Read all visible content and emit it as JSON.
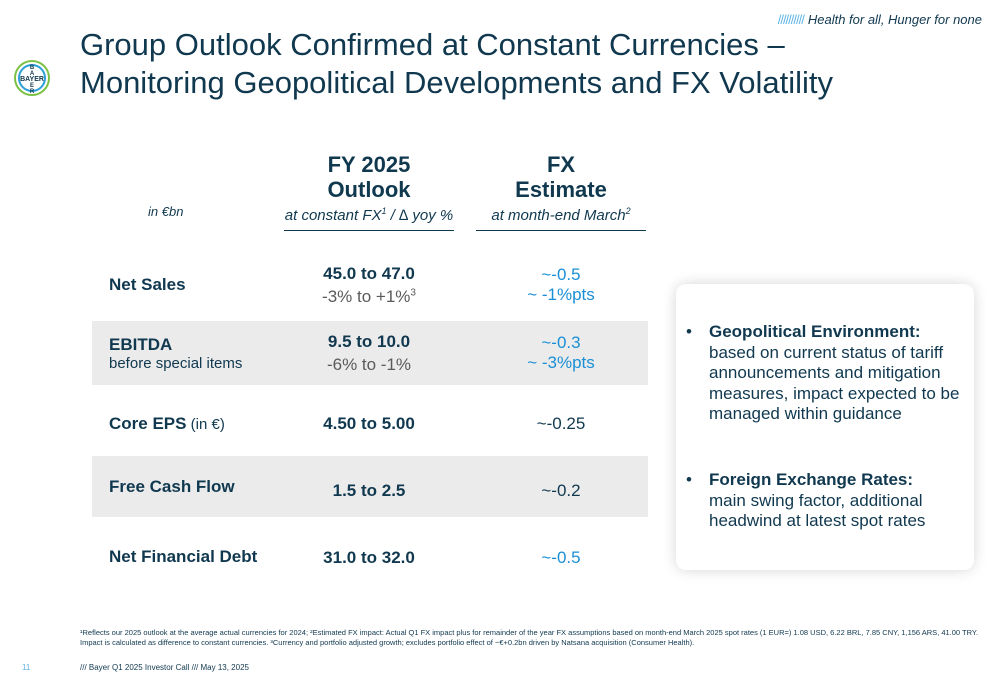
{
  "header": {
    "tagline_prefix": "//////////",
    "tagline": "Health for all, Hunger for none",
    "logo_text": "BAYER",
    "title_line1": "Group Outlook Confirmed at Constant Currencies –",
    "title_line2": "Monitoring Geopolitical Developments and FX Volatility"
  },
  "table": {
    "unit": "in €bn",
    "col1": {
      "title_line1": "FY 2025",
      "title_line2": "Outlook",
      "subtitle_prefix": "at constant FX",
      "subtitle_sup": "1",
      "subtitle_suffix": " / ∆ yoy %"
    },
    "col2": {
      "title_line1": "FX",
      "title_line2": "Estimate",
      "subtitle_prefix": "at month-end March",
      "subtitle_sup": "2"
    },
    "rows": [
      {
        "label": "Net Sales",
        "outlook": "45.0 to 47.0",
        "yoy": "-3% to +1%",
        "yoy_sup": "3",
        "fx": "~-0.5",
        "fx2": "~ -1%pts"
      },
      {
        "label": "EBITDA",
        "label_sub": "before special items",
        "outlook": "9.5 to 10.0",
        "yoy": "-6% to -1%",
        "fx": "~-0.3",
        "fx2": "~ -3%pts"
      },
      {
        "label": "Core EPS",
        "label_inline": " (in €)",
        "outlook": "4.50 to 5.00",
        "fx": "~-0.25"
      },
      {
        "label": "Free Cash Flow",
        "outlook": "1.5 to 2.5",
        "fx": "~-0.2"
      },
      {
        "label": "Net Financial Debt",
        "outlook": "31.0 to 32.0",
        "fx": "~-0.5"
      }
    ]
  },
  "panel": {
    "bullets": [
      {
        "heading": "Geopolitical Environment:",
        "text": "based on current status of tariff announcements and mitigation measures, impact expected to be managed within guidance"
      },
      {
        "heading": "Foreign Exchange Rates:",
        "text": "main swing factor, additional headwind at latest spot rates"
      }
    ]
  },
  "footnote": {
    "line1": "¹Reflects our 2025 outlook at the average actual currencies for 2024; ²Estimated FX impact: Actual Q1 FX impact plus for remainder of the year FX assumptions based on month-end March 2025 spot rates (1 EUR=) 1.08 USD, 6.22 BRL, 7.85 CNY, 1,156 ARS, 41.00 TRY.",
    "line2": "Impact is calculated as difference to constant currencies. ³Currency and portfolio adjusted growth; excludes portfolio effect of ~€+0.2bn driven by Natsana acquisition (Consumer Health)."
  },
  "footer": {
    "page_number": "11",
    "text": "/// Bayer Q1 2025 Investor Call /// May 13, 2025"
  },
  "colors": {
    "navy": "#10384f",
    "fx_blue": "#1a8fd6",
    "row_shade": "#ebebeb"
  }
}
